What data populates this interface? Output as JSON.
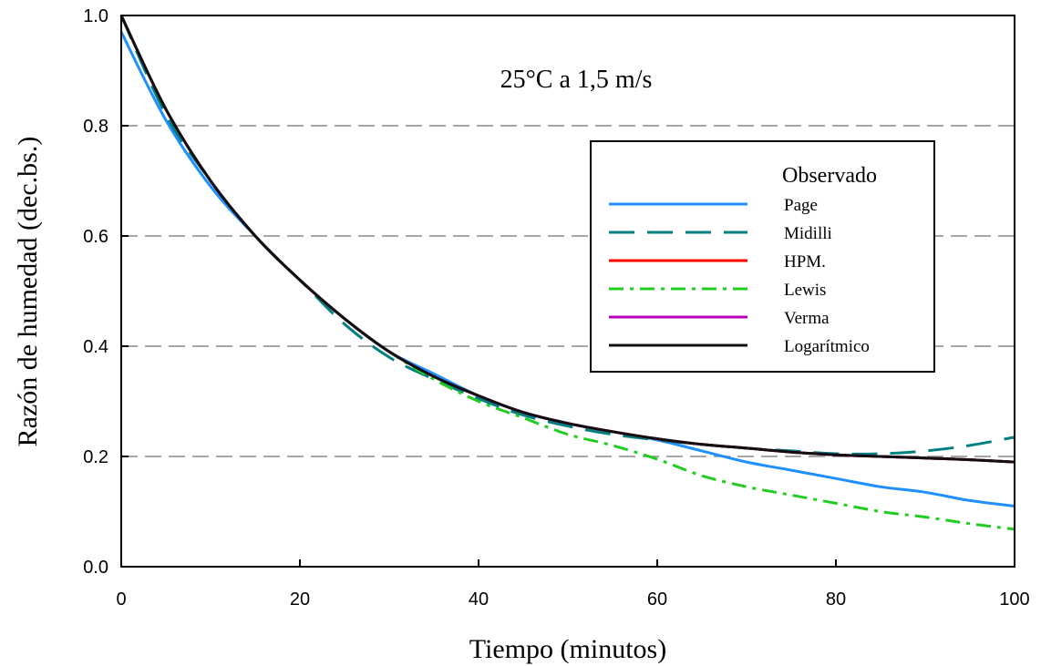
{
  "chart_data": {
    "type": "line",
    "title": "",
    "annotation": "25°C a 1,5 m/s",
    "xlabel": "Tiempo (minutos)",
    "ylabel": "Razón de humedad (dec.bs.)",
    "xlim": [
      0,
      100
    ],
    "ylim": [
      0,
      1.0
    ],
    "x_ticks": [
      "0",
      "20",
      "40",
      "60",
      "80",
      "100"
    ],
    "y_ticks": [
      "0.0",
      "0.2",
      "0.4",
      "0.6",
      "0.8",
      "1.0"
    ],
    "grid": "horizontal dashed",
    "legend": {
      "placement": "right",
      "title": "Observado",
      "entries": [
        "Page",
        "Midilli",
        "HPM.",
        "Lewis",
        "Verma",
        "Logarítmico"
      ]
    },
    "x": [
      0,
      5,
      10,
      15,
      20,
      25,
      30,
      35,
      40,
      45,
      50,
      55,
      60,
      65,
      70,
      75,
      80,
      85,
      90,
      95,
      100
    ],
    "series": [
      {
        "name": "Page",
        "color": "#1e90ff",
        "style": "solid",
        "values": [
          0.97,
          0.81,
          0.69,
          0.6,
          0.52,
          0.45,
          0.39,
          0.35,
          0.31,
          0.28,
          0.26,
          0.245,
          0.23,
          0.21,
          0.19,
          0.175,
          0.16,
          0.145,
          0.135,
          0.12,
          0.11
        ]
      },
      {
        "name": "Midilli",
        "color": "#008080",
        "style": "dashed",
        "values": [
          1.0,
          0.82,
          0.7,
          0.6,
          0.52,
          0.44,
          0.38,
          0.34,
          0.305,
          0.275,
          0.255,
          0.24,
          0.23,
          0.222,
          0.215,
          0.21,
          0.205,
          0.205,
          0.21,
          0.22,
          0.235
        ]
      },
      {
        "name": "HPM.",
        "color": "#ff0000",
        "style": "solid",
        "values": [
          1.0,
          0.83,
          0.7,
          0.6,
          0.52,
          0.45,
          0.39,
          0.345,
          0.31,
          0.28,
          0.26,
          0.245,
          0.232,
          0.222,
          0.215,
          0.208,
          0.203,
          0.2,
          0.197,
          0.194,
          0.19
        ]
      },
      {
        "name": "Lewis",
        "color": "#22cc22",
        "style": "dash-dot",
        "values": [
          1.0,
          0.83,
          0.7,
          0.6,
          0.52,
          0.45,
          0.39,
          0.34,
          0.3,
          0.27,
          0.24,
          0.22,
          0.195,
          0.165,
          0.145,
          0.13,
          0.115,
          0.1,
          0.09,
          0.078,
          0.068
        ]
      },
      {
        "name": "Verma",
        "color": "#bb00bb",
        "style": "solid",
        "values": [
          1.0,
          0.83,
          0.7,
          0.6,
          0.52,
          0.45,
          0.39,
          0.345,
          0.31,
          0.28,
          0.26,
          0.245,
          0.232,
          0.222,
          0.215,
          0.208,
          0.203,
          0.2,
          0.197,
          0.194,
          0.19
        ]
      },
      {
        "name": "Logarítmico",
        "color": "#111111",
        "style": "solid",
        "values": [
          1.0,
          0.83,
          0.7,
          0.6,
          0.52,
          0.45,
          0.39,
          0.345,
          0.31,
          0.28,
          0.26,
          0.245,
          0.232,
          0.222,
          0.215,
          0.208,
          0.203,
          0.2,
          0.197,
          0.194,
          0.19
        ]
      }
    ]
  }
}
